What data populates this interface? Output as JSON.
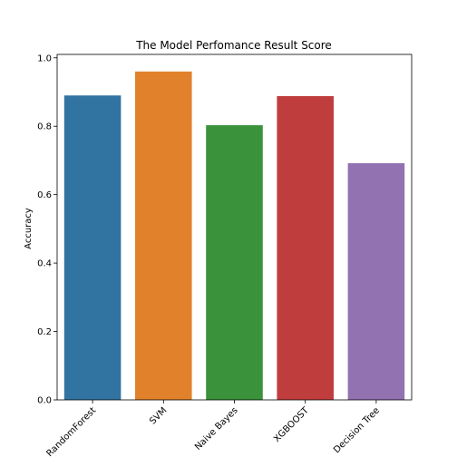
{
  "chart_data": {
    "type": "bar",
    "title": "The Model Perfomance Result Score",
    "xlabel": "",
    "ylabel": "Accuracy",
    "categories": [
      "RandomForest",
      "SVM",
      "Naive Bayes",
      "XGBOOST",
      "Decision Tree"
    ],
    "values": [
      0.89,
      0.96,
      0.803,
      0.888,
      0.692
    ],
    "colors": [
      "#3274a1",
      "#e1812c",
      "#3a923a",
      "#c03d3e",
      "#9372b2"
    ],
    "ylim": [
      0,
      1.01
    ],
    "yticks": [
      0.0,
      0.2,
      0.4,
      0.6,
      0.8,
      1.0
    ],
    "ytick_labels": [
      "0.0",
      "0.2",
      "0.4",
      "0.6",
      "0.8",
      "1.0"
    ],
    "grid": false,
    "legend": "none"
  }
}
